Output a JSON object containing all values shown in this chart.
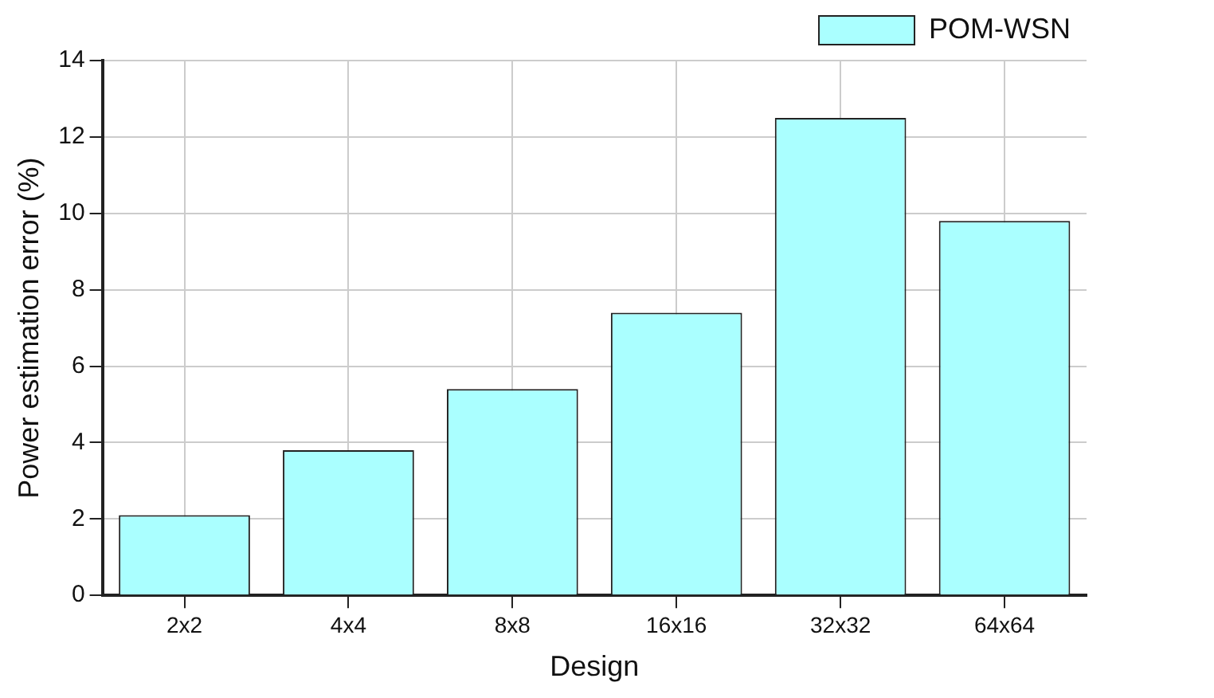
{
  "chart_data": {
    "type": "bar",
    "xlabel": "Design",
    "ylabel": "Power estimation error (%)",
    "categories": [
      "2x2",
      "4x4",
      "8x8",
      "16x16",
      "32x32",
      "64x64"
    ],
    "series": [
      {
        "name": "POM-WSN",
        "color": "#aaffff",
        "values": [
          2.1,
          3.8,
          5.4,
          7.4,
          12.5,
          9.8
        ]
      }
    ],
    "ylim": [
      0,
      14
    ],
    "yticks": [
      0,
      2,
      4,
      6,
      8,
      10,
      12,
      14
    ],
    "grid": true,
    "legend": "top right"
  }
}
